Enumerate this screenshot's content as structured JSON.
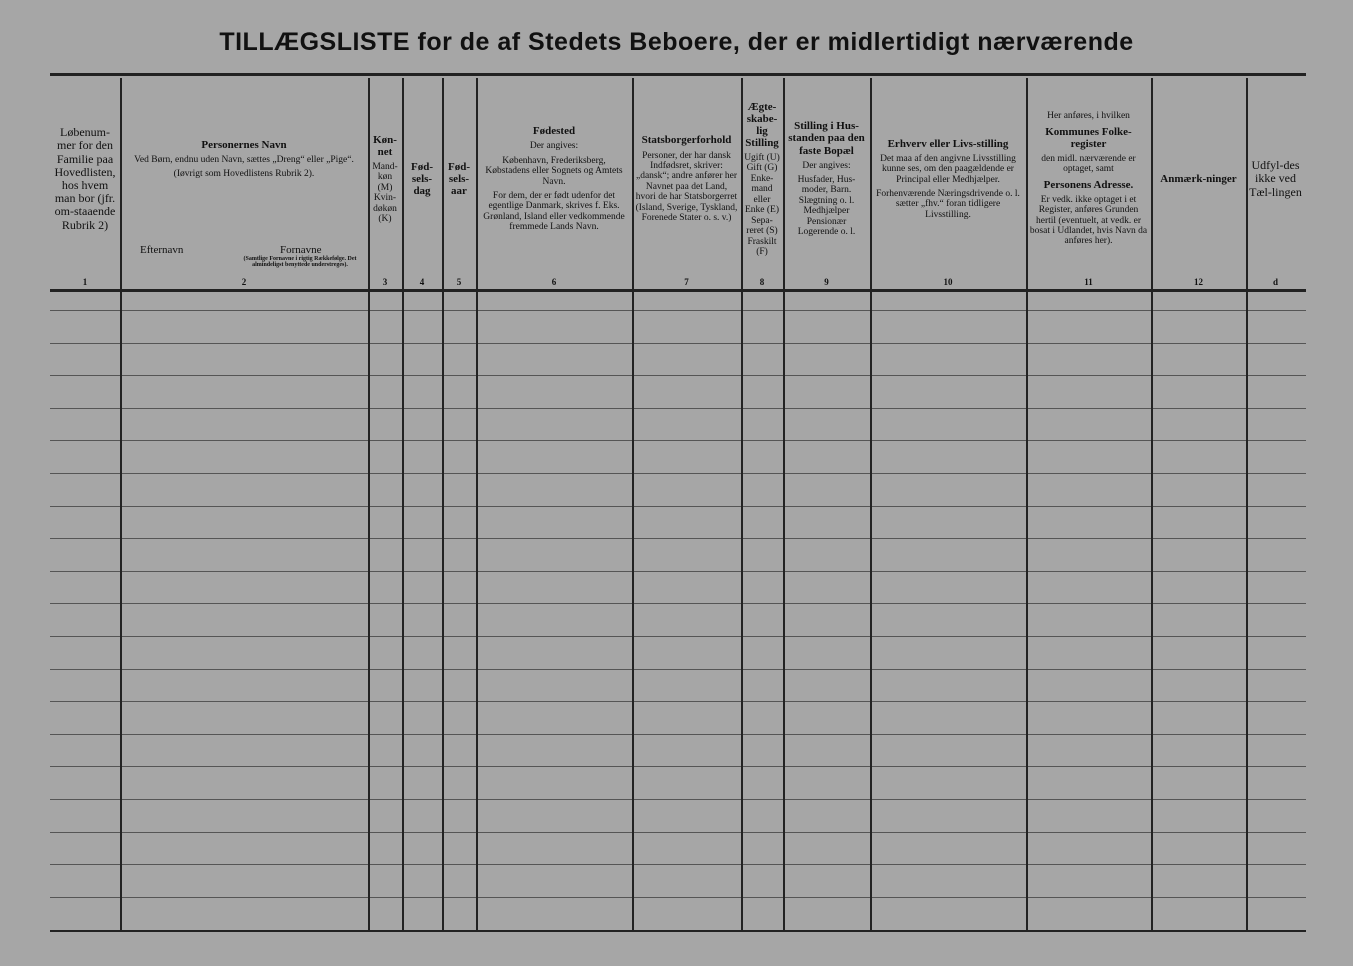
{
  "title": "TILLÆGSLISTE for de af Stedets Beboere, der er midlertidigt nærværende",
  "columns": [
    {
      "number": "1",
      "parts": [
        {
          "text": "Løbenum-mer for den Familie paa Hovedlisten, hos hvem man bor (jfr. om-staaende Rubrik 2)"
        }
      ]
    },
    {
      "number": "2",
      "parts": [
        {
          "text": "Personernes Navn",
          "bold": true
        },
        {
          "text": "Ved Børn, endnu uden Navn, sættes „Dreng“ eller „Pige“."
        },
        {
          "text": "(Iøvrigt som Hovedlistens Rubrik 2)."
        }
      ],
      "subheads": [
        "Efternavn",
        "Fornavne"
      ],
      "note": "(Samtlige Fornavne i rigtig Rækkefølge. Det almindeligst benyttede understreges)."
    },
    {
      "number": "3",
      "parts": [
        {
          "text": "Køn-net",
          "bold": true
        },
        {
          "text": "Mand-køn (M) Kvin-døkøn (K)"
        }
      ]
    },
    {
      "number": "4",
      "parts": [
        {
          "text": "Fød-sels-dag",
          "bold": true
        }
      ]
    },
    {
      "number": "5",
      "parts": [
        {
          "text": "Fød-sels-aar",
          "bold": true
        }
      ]
    },
    {
      "number": "6",
      "parts": [
        {
          "text": "Fødested",
          "bold": true
        },
        {
          "text": "Der angives:"
        },
        {
          "text": "København, Frederiksberg, Købstadens eller Sognets og Amtets Navn."
        },
        {
          "text": "For dem, der er født udenfor det egentlige Danmark, skrives f. Eks. Grønland, Island eller vedkommende fremmede Lands Navn."
        }
      ]
    },
    {
      "number": "7",
      "parts": [
        {
          "text": "Statsborgerforhold",
          "bold": true
        },
        {
          "text": "Personer, der har dansk Indfødsret, skriver: „dansk“; andre anfører her Navnet paa det Land, hvori de har Statsborgerret (Island, Sverige, Tyskland, Forenede Stater o. s. v.)"
        }
      ]
    },
    {
      "number": "8",
      "parts": [
        {
          "text": "Ægte-skabe-lig Stilling",
          "bold": true
        },
        {
          "text": "Ugift (U) Gift (G) Enke-mand eller Enke (E) Sepa-reret (S) Fraskilt (F)"
        }
      ]
    },
    {
      "number": "9",
      "parts": [
        {
          "text": "Stilling i Hus-standen paa den faste Bopæl",
          "bold": true
        },
        {
          "text": "Der angives:"
        },
        {
          "text": "Husfader, Hus-moder, Barn. Slægtning o. l. Medhjælper Pensionær Logerende o. l."
        }
      ]
    },
    {
      "number": "10",
      "parts": [
        {
          "text": "Erhverv eller Livs-stilling",
          "bold": true
        },
        {
          "text": "Det maa af den angivne Livsstilling kunne ses, om den paagældende er Principal eller Medhjælper."
        },
        {
          "text": "Forhenværende Næringsdrivende o. l. sætter „fhv.“ foran tidligere Livsstilling."
        }
      ]
    },
    {
      "number": "11",
      "parts": [
        {
          "text": "Her anføres, i hvilken"
        },
        {
          "text": "Kommunes Folke-register",
          "bold": true
        },
        {
          "text": "den midl. nærværende er optaget, samt"
        },
        {
          "text": "Personens Adresse.",
          "bold": true
        },
        {
          "text": "Er vedk. ikke optaget i et Register, anføres Grunden hertil (eventuelt, at vedk. er bosat i Udlandet, hvis Navn da anføres her)."
        }
      ]
    },
    {
      "number": "12",
      "parts": [
        {
          "text": "Anmærk-ninger",
          "bold": true
        }
      ]
    },
    {
      "number": "d",
      "parts": [
        {
          "text": "Udfyl-des ikke ved Tæl-lingen"
        }
      ]
    }
  ]
}
